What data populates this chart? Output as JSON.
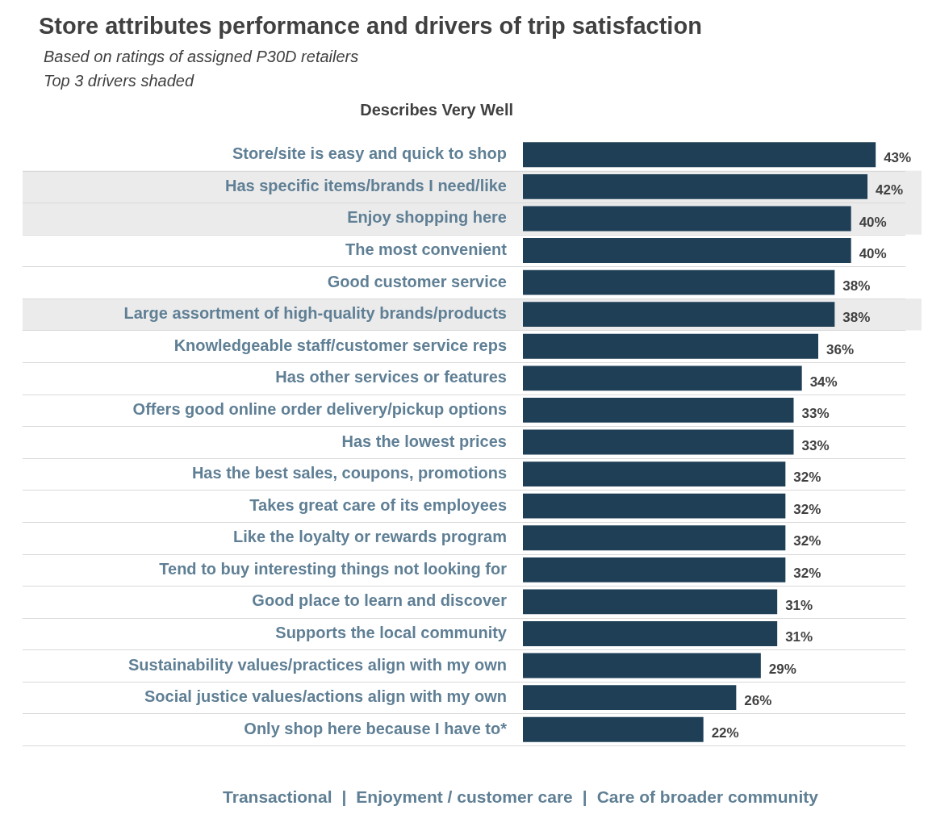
{
  "chart_data": {
    "type": "bar",
    "orientation": "horizontal",
    "title": "Store attributes performance and drivers of trip satisfaction",
    "subtitle": "Based on ratings of assigned P30D retailers\nTop 3 drivers shaded",
    "ylabel": "Describes Very Well",
    "categories": [
      "Store/site is easy and quick to shop",
      "Has specific items/brands I need/like",
      "Enjoy shopping here",
      "The most convenient",
      "Good customer service",
      "Large assortment of high-quality brands/products",
      "Knowledgeable staff/customer service reps",
      "Has other services or features",
      "Offers good online order delivery/pickup options",
      "Has the lowest prices",
      "Has the best sales, coupons, promotions",
      "Takes great care of its employees",
      "Like the loyalty or rewards program",
      "Tend to buy interesting things not looking for",
      "Good place to learn and discover",
      "Supports the local community",
      "Sustainability values/practices align with my own",
      "Social justice values/actions align with my own",
      "Only shop here because I have to*"
    ],
    "values": [
      43,
      42,
      40,
      40,
      38,
      38,
      36,
      34,
      33,
      33,
      32,
      32,
      32,
      32,
      31,
      31,
      29,
      26,
      22
    ],
    "value_labels": [
      "43%",
      "42%",
      "40%",
      "40%",
      "38%",
      "38%",
      "36%",
      "34%",
      "33%",
      "33%",
      "32%",
      "32%",
      "32%",
      "32%",
      "31%",
      "31%",
      "29%",
      "26%",
      "22%"
    ],
    "color": "#1e3f56",
    "bands": [
      {
        "axis": "y",
        "from": "Has specific items/brands I need/like",
        "to": "Enjoy shopping here",
        "color": "#ebebeb"
      },
      {
        "axis": "y",
        "from": "Large assortment of high-quality brands/products",
        "to": "Large assortment of high-quality brands/products",
        "color": "#ebebeb"
      }
    ],
    "grid": "y",
    "legend": false,
    "annotations": [
      "Transactional",
      "|",
      "Enjoyment / customer care",
      "|",
      "Care of broader community"
    ]
  }
}
